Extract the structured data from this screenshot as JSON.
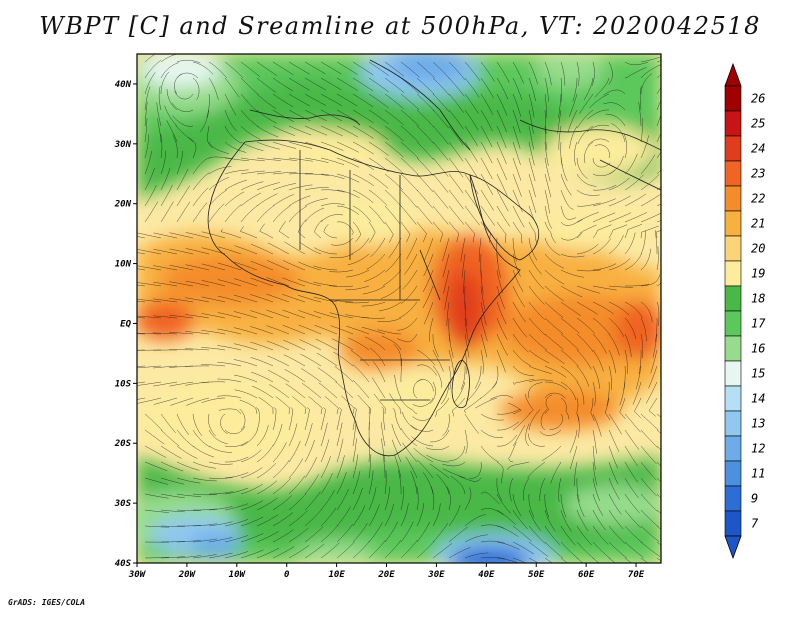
{
  "title": "WBPT [C] and Sreamline at 500hPa, VT: 2020042518",
  "credit": "GrADS: IGES/COLA",
  "map": {
    "lon_range": [
      -30,
      75
    ],
    "lat_range": [
      -40,
      45
    ],
    "x_ticks": [
      {
        "value": -30,
        "label": "30W"
      },
      {
        "value": -20,
        "label": "20W"
      },
      {
        "value": -10,
        "label": "10W"
      },
      {
        "value": 0,
        "label": "0"
      },
      {
        "value": 10,
        "label": "10E"
      },
      {
        "value": 20,
        "label": "20E"
      },
      {
        "value": 30,
        "label": "30E"
      },
      {
        "value": 40,
        "label": "40E"
      },
      {
        "value": 50,
        "label": "50E"
      },
      {
        "value": 60,
        "label": "60E"
      },
      {
        "value": 70,
        "label": "70E"
      }
    ],
    "y_ticks": [
      {
        "value": 40,
        "label": "40N"
      },
      {
        "value": 30,
        "label": "30N"
      },
      {
        "value": 20,
        "label": "20N"
      },
      {
        "value": 10,
        "label": "10N"
      },
      {
        "value": 0,
        "label": "EQ"
      },
      {
        "value": -10,
        "label": "10S"
      },
      {
        "value": -20,
        "label": "20S"
      },
      {
        "value": -30,
        "label": "30S"
      },
      {
        "value": -40,
        "label": "40S"
      }
    ]
  },
  "colorbar": {
    "labels": [
      "26",
      "25",
      "24",
      "23",
      "22",
      "21",
      "20",
      "19",
      "18",
      "17",
      "16",
      "15",
      "14",
      "13",
      "12",
      "11",
      "9",
      "7"
    ],
    "colors": [
      "#a00000",
      "#c81414",
      "#e03c1e",
      "#f06424",
      "#f48c2c",
      "#f8b040",
      "#fcd478",
      "#fcec9c",
      "#4ab846",
      "#5cc85c",
      "#96dc8c",
      "#e6f6f0",
      "#b4e0f6",
      "#90c8f0",
      "#6cacea",
      "#4c90e0",
      "#2c6ed6",
      "#1c56c8"
    ]
  },
  "legend_colors": {
    "tan": "#fcec9c",
    "orange": "#f48c2c",
    "red_orange": "#e04c1e",
    "green": "#4ab846",
    "light_green": "#96dc8c",
    "blue": "#6cacea"
  }
}
